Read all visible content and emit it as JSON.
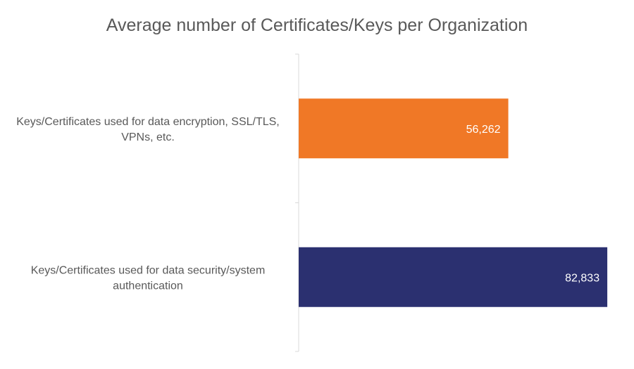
{
  "chart_data": {
    "type": "bar",
    "orientation": "horizontal",
    "title": "Average number of Certificates/Keys per Organization",
    "categories": [
      {
        "label": "Keys/Certificates used for data encryption, SSL/TLS, VPNs, etc.",
        "label_lines": [
          "Keys/Certificates used for data encryption, SSL/TLS,",
          "VPNs, etc."
        ],
        "value": 56262,
        "value_label": "56,262",
        "color": "#f07826"
      },
      {
        "label": "Keys/Certificates used for data security/system authentication",
        "label_lines": [
          "Keys/Certificates used for data security/system",
          "authentication"
        ],
        "value": 82833,
        "value_label": "82,833",
        "color": "#2b3070"
      }
    ],
    "xlim": [
      0,
      90000
    ],
    "grid": false,
    "legend": "none",
    "axis_color": "#d9d9d9"
  }
}
